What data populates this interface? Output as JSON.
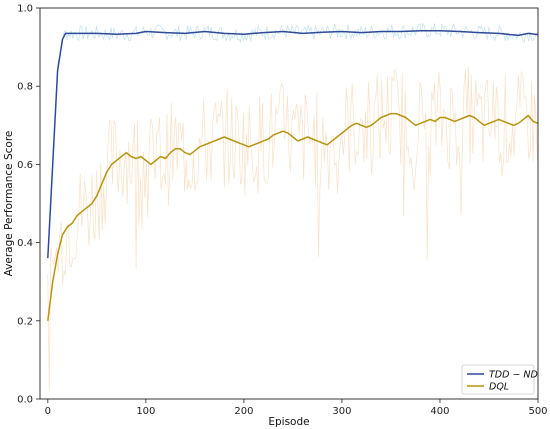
{
  "chart_data": {
    "type": "line",
    "xlabel": "Episode",
    "ylabel": "Average Performance Score",
    "xlim": [
      -8,
      500
    ],
    "ylim": [
      0.0,
      1.0
    ],
    "xticks": [
      0,
      100,
      200,
      300,
      400,
      500
    ],
    "yticks": [
      0.0,
      0.2,
      0.4,
      0.6,
      0.8,
      1.0
    ],
    "legend_position": "bottom-right",
    "series": [
      {
        "name": "TDD − ND",
        "color": "#2e4b9a",
        "raw_color": "#a9d8ec",
        "x": [
          0,
          5,
          10,
          15,
          18,
          20,
          30,
          50,
          70,
          90,
          100,
          120,
          140,
          160,
          180,
          200,
          220,
          240,
          260,
          280,
          300,
          320,
          340,
          360,
          380,
          400,
          420,
          440,
          460,
          480,
          490,
          500
        ],
        "values": [
          0.36,
          0.6,
          0.84,
          0.92,
          0.935,
          0.935,
          0.935,
          0.935,
          0.933,
          0.935,
          0.94,
          0.937,
          0.935,
          0.94,
          0.935,
          0.933,
          0.937,
          0.94,
          0.935,
          0.938,
          0.94,
          0.937,
          0.94,
          0.94,
          0.942,
          0.942,
          0.94,
          0.937,
          0.935,
          0.93,
          0.935,
          0.932
        ]
      },
      {
        "name": "DQL",
        "color": "#b8930f",
        "raw_color": "#f7d7b4",
        "x": [
          0,
          5,
          10,
          15,
          20,
          25,
          30,
          35,
          40,
          45,
          50,
          55,
          60,
          65,
          70,
          75,
          80,
          85,
          90,
          95,
          100,
          105,
          110,
          115,
          120,
          125,
          130,
          135,
          140,
          145,
          150,
          155,
          160,
          165,
          170,
          175,
          180,
          185,
          190,
          195,
          200,
          205,
          210,
          215,
          220,
          225,
          230,
          235,
          240,
          245,
          250,
          255,
          260,
          265,
          270,
          275,
          280,
          285,
          290,
          295,
          300,
          305,
          310,
          315,
          320,
          325,
          330,
          335,
          340,
          345,
          350,
          355,
          360,
          365,
          370,
          375,
          380,
          385,
          390,
          395,
          400,
          405,
          410,
          415,
          420,
          425,
          430,
          435,
          440,
          445,
          450,
          455,
          460,
          465,
          470,
          475,
          480,
          485,
          490,
          495,
          500
        ],
        "values": [
          0.2,
          0.3,
          0.37,
          0.42,
          0.44,
          0.45,
          0.47,
          0.48,
          0.49,
          0.5,
          0.52,
          0.55,
          0.58,
          0.6,
          0.61,
          0.62,
          0.63,
          0.62,
          0.615,
          0.62,
          0.61,
          0.6,
          0.61,
          0.62,
          0.615,
          0.63,
          0.64,
          0.64,
          0.63,
          0.625,
          0.635,
          0.645,
          0.65,
          0.655,
          0.66,
          0.665,
          0.67,
          0.665,
          0.66,
          0.655,
          0.65,
          0.645,
          0.65,
          0.655,
          0.66,
          0.665,
          0.675,
          0.68,
          0.685,
          0.68,
          0.67,
          0.66,
          0.665,
          0.67,
          0.665,
          0.66,
          0.655,
          0.65,
          0.66,
          0.67,
          0.68,
          0.69,
          0.7,
          0.705,
          0.7,
          0.695,
          0.7,
          0.71,
          0.72,
          0.725,
          0.73,
          0.73,
          0.725,
          0.72,
          0.71,
          0.7,
          0.705,
          0.71,
          0.715,
          0.71,
          0.72,
          0.72,
          0.715,
          0.71,
          0.715,
          0.72,
          0.725,
          0.72,
          0.71,
          0.7,
          0.705,
          0.71,
          0.715,
          0.71,
          0.705,
          0.7,
          0.705,
          0.715,
          0.725,
          0.71,
          0.705
        ]
      }
    ]
  }
}
